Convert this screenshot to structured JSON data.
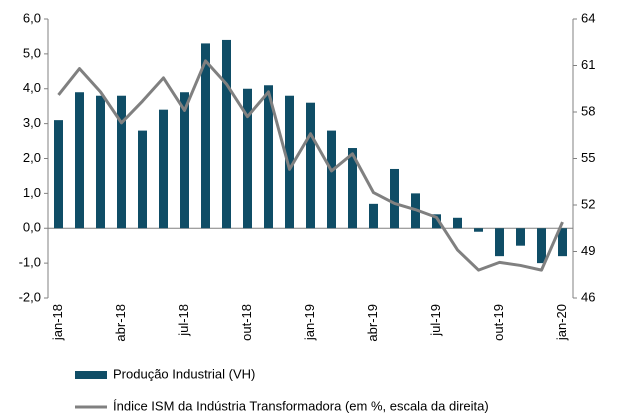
{
  "chart_data": {
    "type": "bar",
    "categories": [
      "jan-18",
      null,
      null,
      "abr-18",
      null,
      null,
      "jul-18",
      null,
      null,
      "out-18",
      null,
      null,
      "jan-19",
      null,
      null,
      "abr-19",
      null,
      null,
      "jul-19",
      null,
      null,
      "out-19",
      null,
      null,
      "jan-20"
    ],
    "series": [
      {
        "name": "Produção Industrial (VH)",
        "type": "bar",
        "color": "#0f4d66",
        "values": [
          3.1,
          3.9,
          3.8,
          3.8,
          2.8,
          3.4,
          3.9,
          5.3,
          5.4,
          4.0,
          4.1,
          3.8,
          3.6,
          2.8,
          2.3,
          0.7,
          1.7,
          1.0,
          0.4,
          0.3,
          -0.1,
          -0.8,
          -0.5,
          -1.0,
          -0.8
        ]
      },
      {
        "name": "Índice ISM da Indústria Transformadora (em %, escala da direita)",
        "type": "line",
        "axis": "y2",
        "color": "#808080",
        "values": [
          59.1,
          60.8,
          59.3,
          57.3,
          58.7,
          60.2,
          58.1,
          61.3,
          59.8,
          57.7,
          59.3,
          54.3,
          56.6,
          54.2,
          55.3,
          52.8,
          52.1,
          51.7,
          51.2,
          49.1,
          47.8,
          48.3,
          48.1,
          47.8,
          50.9
        ]
      }
    ],
    "ylim": [
      -2,
      6
    ],
    "yticks": [
      {
        "value": -2,
        "label": "-2,0"
      },
      {
        "value": -1,
        "label": "-1,0"
      },
      {
        "value": 0,
        "label": "0,0"
      },
      {
        "value": 1,
        "label": "1,0"
      },
      {
        "value": 2,
        "label": "2,0"
      },
      {
        "value": 3,
        "label": "3,0"
      },
      {
        "value": 4,
        "label": "4,0"
      },
      {
        "value": 5,
        "label": "5,0"
      },
      {
        "value": 6,
        "label": "6,0"
      }
    ],
    "y2lim": [
      46,
      64
    ],
    "y2ticks": [
      46,
      49,
      52,
      55,
      58,
      61,
      64
    ],
    "legend": "bottom"
  }
}
